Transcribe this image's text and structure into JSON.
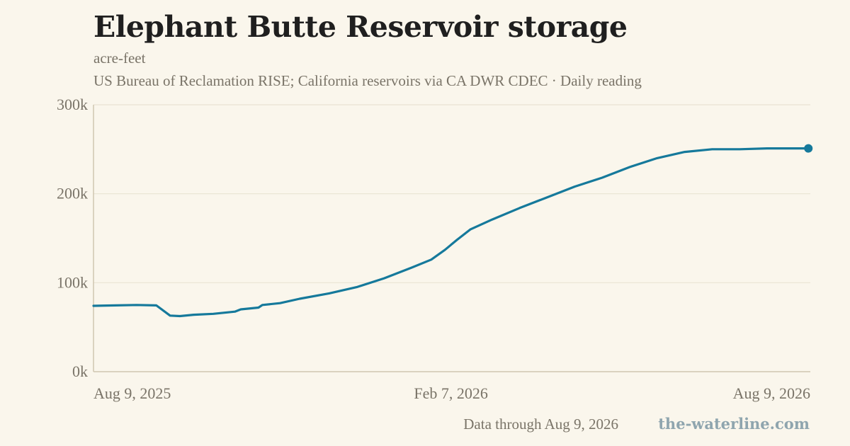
{
  "header": {
    "title": "Elephant Butte Reservoir storage",
    "unit": "acre-feet",
    "source": "US Bureau of Reclamation RISE; California reservoirs via CA DWR CDEC · Daily reading"
  },
  "footer": {
    "note": "Data through Aug 9, 2026",
    "brand": "the-waterline.com"
  },
  "colors": {
    "line": "#15799b",
    "grid": "#e9e3d3",
    "axis": "#cfc6b0",
    "background": "#faf6ec"
  },
  "chart_data": {
    "type": "line",
    "title": "Elephant Butte Reservoir storage",
    "ylabel": "acre-feet",
    "ylim": [
      0,
      300000
    ],
    "yticks": [
      {
        "value": 0,
        "label": "0k"
      },
      {
        "value": 100000,
        "label": "100k"
      },
      {
        "value": 200000,
        "label": "200k"
      },
      {
        "value": 300000,
        "label": "300k"
      }
    ],
    "xlim": [
      "2025-08-09",
      "2026-08-09"
    ],
    "xticks": [
      {
        "date": "2025-08-09",
        "label": "Aug 9, 2025"
      },
      {
        "date": "2026-02-07",
        "label": "Feb 7, 2026"
      },
      {
        "date": "2026-08-09",
        "label": "Aug 9, 2026"
      }
    ],
    "grid": true,
    "series": [
      {
        "points": [
          [
            "2025-08-09",
            74000
          ],
          [
            "2025-08-20",
            74500
          ],
          [
            "2025-08-31",
            75000
          ],
          [
            "2025-09-10",
            74500
          ],
          [
            "2025-09-17",
            63000
          ],
          [
            "2025-09-22",
            62500
          ],
          [
            "2025-09-29",
            64000
          ],
          [
            "2025-10-09",
            65000
          ],
          [
            "2025-10-20",
            67500
          ],
          [
            "2025-10-23",
            70000
          ],
          [
            "2025-11-01",
            72000
          ],
          [
            "2025-11-03",
            75000
          ],
          [
            "2025-11-12",
            77000
          ],
          [
            "2025-11-22",
            82000
          ],
          [
            "2025-12-07",
            88000
          ],
          [
            "2025-12-21",
            95000
          ],
          [
            "2026-01-04",
            105000
          ],
          [
            "2026-01-18",
            117000
          ],
          [
            "2026-01-28",
            126000
          ],
          [
            "2026-02-04",
            137000
          ],
          [
            "2026-02-10",
            148000
          ],
          [
            "2026-02-17",
            160000
          ],
          [
            "2026-02-28",
            171000
          ],
          [
            "2026-03-14",
            184000
          ],
          [
            "2026-03-28",
            196000
          ],
          [
            "2026-04-11",
            208000
          ],
          [
            "2026-04-25",
            218000
          ],
          [
            "2026-05-09",
            230000
          ],
          [
            "2026-05-23",
            240000
          ],
          [
            "2026-06-06",
            247000
          ],
          [
            "2026-06-20",
            250000
          ],
          [
            "2026-07-04",
            250000
          ],
          [
            "2026-07-18",
            251000
          ],
          [
            "2026-08-01",
            251000
          ],
          [
            "2026-08-08",
            251000
          ]
        ]
      }
    ]
  }
}
